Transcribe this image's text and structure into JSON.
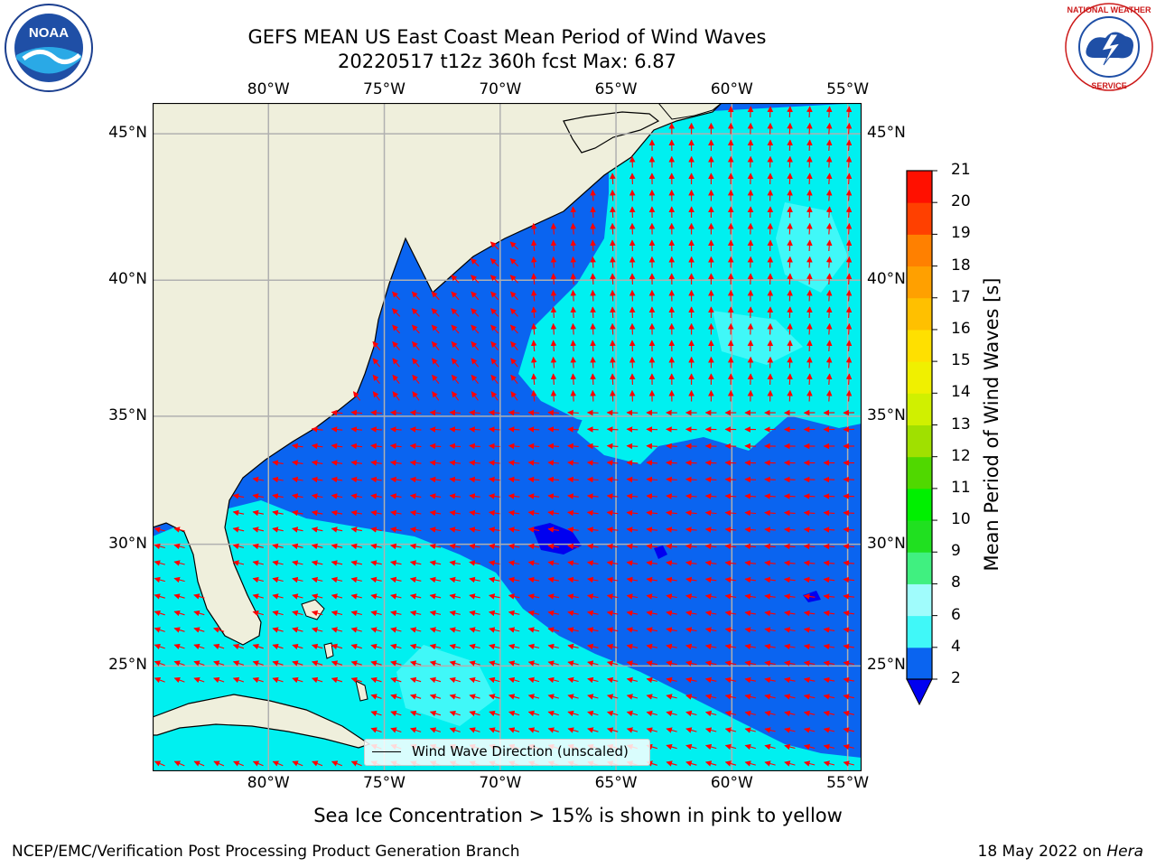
{
  "title_line1": "GEFS MEAN US East Coast Mean Period of Wind Waves",
  "title_line2": "20220517 t12z 360h fcst   Max: 6.87",
  "map": {
    "lon_ticks": [
      "80°W",
      "75°W",
      "70°W",
      "65°W",
      "60°W",
      "55°W"
    ],
    "lon_values": [
      -80,
      -75,
      -70,
      -65,
      -60,
      -55
    ],
    "lat_ticks": [
      "45°N",
      "40°N",
      "35°N",
      "30°N",
      "25°N"
    ],
    "lat_values": [
      45,
      40,
      35,
      30,
      25
    ],
    "lon_range": [
      -85,
      -54.4
    ],
    "lat_range": [
      20.5,
      46
    ],
    "grid": true,
    "land_color": "#efefdc",
    "coast_color": "#000000",
    "arrow_color": "#ff0000",
    "arrow_style": "unscaled direction arrows, predominantly pointing west to north"
  },
  "legend": {
    "text": "Wind Wave Direction (unscaled)",
    "placement": "bottom-center"
  },
  "colorbar": {
    "label": "Mean Period of Wind Waves [s]",
    "ticks": [
      2,
      4,
      6,
      8,
      9,
      10,
      11,
      12,
      13,
      14,
      15,
      16,
      17,
      18,
      19,
      20,
      21
    ],
    "colors": [
      "#0a64f0",
      "#00e6f0",
      "#40f8f8",
      "#a0fcfc",
      "#40f080",
      "#20e020",
      "#00f000",
      "#50d800",
      "#a0e000",
      "#d0f000",
      "#f0f000",
      "#ffe000",
      "#ffc000",
      "#ffa000",
      "#ff8000",
      "#ff4000",
      "#ff1000",
      "#ff0000"
    ],
    "under_color": "#0000f0",
    "extend": "min"
  },
  "ice_note": "Sea Ice Concentration > 15% is shown in pink to yellow",
  "footer_left": "NCEP/EMC/Verification Post Processing Product Generation Branch",
  "footer_right_prefix": "18 May 2022 on ",
  "footer_right_host": "Hera",
  "logos": {
    "noaa": "NOAA",
    "nws": "NATIONAL WEATHER SERVICE"
  }
}
